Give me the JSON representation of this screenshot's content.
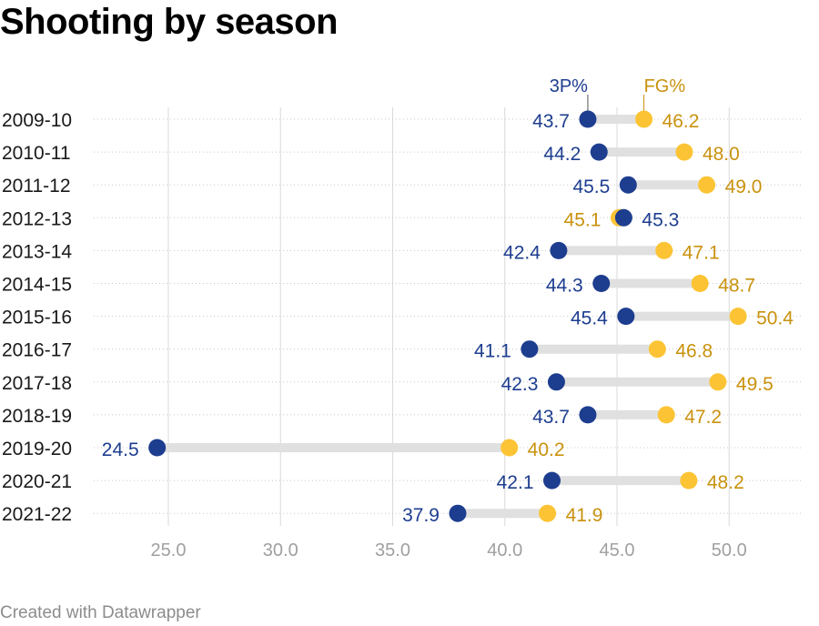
{
  "title": "Shooting by season",
  "footer": "Created with Datawrapper",
  "colors": {
    "three_pt": "#1d3d8f",
    "fg": "#fcc434",
    "fg_text": "#c9920e",
    "connector": "#e0e0e0",
    "grid": "#d9d9d9",
    "tick": "#a0a0a0",
    "category": "#1a1a1a"
  },
  "chart_data": {
    "type": "dot-range",
    "title": "Shooting by season",
    "xlim": [
      22,
      52
    ],
    "xticks": [
      "25.0",
      "30.0",
      "35.0",
      "40.0",
      "45.0",
      "50.0"
    ],
    "xtick_values": [
      25,
      30,
      35,
      40,
      45,
      50
    ],
    "legend": {
      "three_pt": "3P%",
      "fg": "FG%",
      "placement": "top"
    },
    "categories": [
      "2009-10",
      "2010-11",
      "2011-12",
      "2012-13",
      "2013-14",
      "2014-15",
      "2015-16",
      "2016-17",
      "2017-18",
      "2018-19",
      "2019-20",
      "2020-21",
      "2021-22"
    ],
    "series": [
      {
        "name": "3P%",
        "values": [
          43.7,
          44.2,
          45.5,
          45.3,
          42.4,
          44.3,
          45.4,
          41.1,
          42.3,
          43.7,
          24.5,
          42.1,
          37.9
        ],
        "labels": [
          "43.7",
          "44.2",
          "45.5",
          "45.3",
          "42.4",
          "44.3",
          "45.4",
          "41.1",
          "42.3",
          "43.7",
          "24.5",
          "42.1",
          "37.9"
        ]
      },
      {
        "name": "FG%",
        "values": [
          46.2,
          48.0,
          49.0,
          45.1,
          47.1,
          48.7,
          50.4,
          46.8,
          49.5,
          47.2,
          40.2,
          48.2,
          41.9
        ],
        "labels": [
          "46.2",
          "48.0",
          "49.0",
          "45.1",
          "47.1",
          "48.7",
          "50.4",
          "46.8",
          "49.5",
          "47.2",
          "40.2",
          "48.2",
          "41.9"
        ]
      }
    ]
  }
}
